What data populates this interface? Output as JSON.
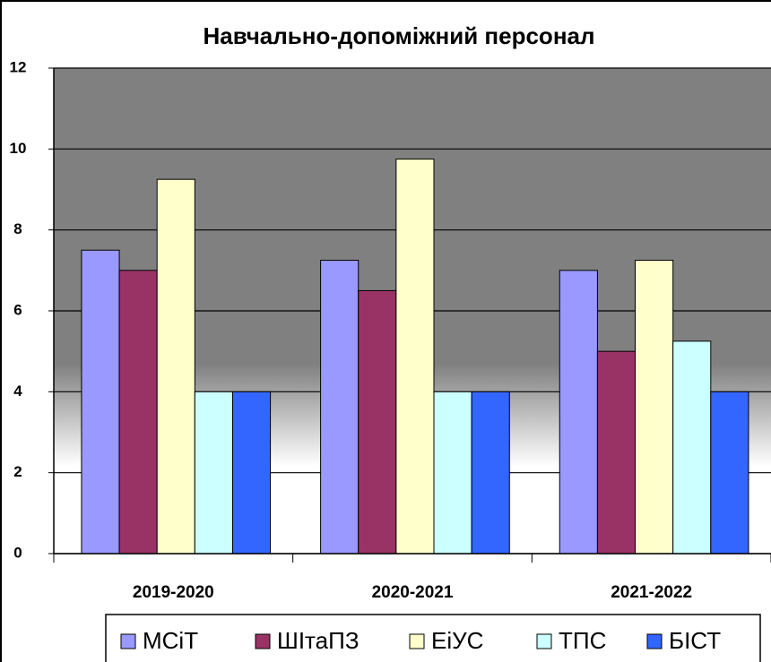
{
  "chart_data": {
    "type": "bar",
    "title": "Навчально-допоміжний персонал",
    "categories": [
      "2019-2020",
      "2020-2021",
      "2021-2022"
    ],
    "series": [
      {
        "name": "МСіТ",
        "color": "#9999ff",
        "values": [
          7.5,
          7.25,
          7
        ]
      },
      {
        "name": "ШІтаПЗ",
        "color": "#993366",
        "values": [
          7,
          6.5,
          5
        ]
      },
      {
        "name": "ЕіУС",
        "color": "#ffffcc",
        "values": [
          9.25,
          9.75,
          7.25
        ]
      },
      {
        "name": "ТПС",
        "color": "#ccffff",
        "values": [
          4,
          4,
          5.25
        ]
      },
      {
        "name": "БІСТ",
        "color": "#3366ff",
        "values": [
          4,
          4,
          4
        ]
      }
    ],
    "ylim": [
      0,
      12
    ],
    "yticks": [
      0,
      2,
      4,
      6,
      8,
      10,
      12
    ],
    "grid": true,
    "legend": "bottom"
  }
}
